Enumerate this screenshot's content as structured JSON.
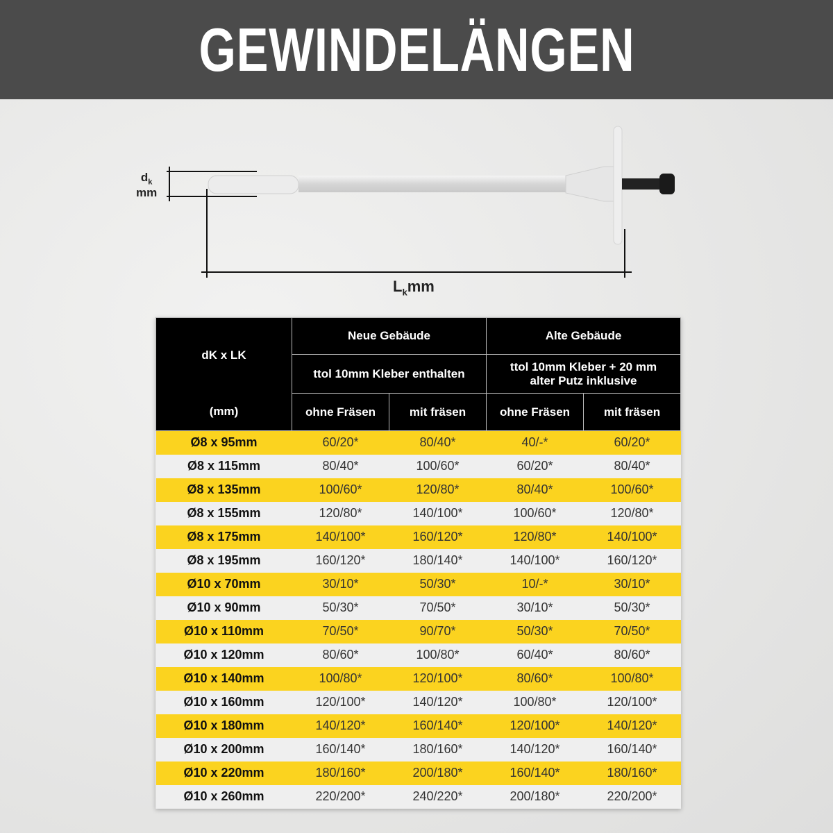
{
  "title": "GEWINDELÄNGEN",
  "diagram": {
    "dk_label": "d",
    "dk_sub": "k",
    "dk_unit": "mm",
    "lk_label": "L",
    "lk_sub": "k",
    "lk_unit": "mm"
  },
  "table": {
    "first_header_top": "dK x LK",
    "first_header_bottom": "(mm)",
    "group_new": "Neue Gebäude",
    "group_old": "Alte Gebäude",
    "sub_new": "ttol 10mm Kleber enthalten",
    "sub_old_line1": "ttol 10mm Kleber + 20 mm",
    "sub_old_line2": "alter Putz inklusive",
    "cols": [
      "ohne Fräsen",
      "mit fräsen",
      "ohne Fräsen",
      "mit fräsen"
    ],
    "rows": [
      [
        "Ø8 x 95mm",
        "60/20*",
        "80/40*",
        "40/-*",
        "60/20*"
      ],
      [
        "Ø8 x 115mm",
        "80/40*",
        "100/60*",
        "60/20*",
        "80/40*"
      ],
      [
        "Ø8 x 135mm",
        "100/60*",
        "120/80*",
        "80/40*",
        "100/60*"
      ],
      [
        "Ø8 x 155mm",
        "120/80*",
        "140/100*",
        "100/60*",
        "120/80*"
      ],
      [
        "Ø8 x 175mm",
        "140/100*",
        "160/120*",
        "120/80*",
        "140/100*"
      ],
      [
        "Ø8 x 195mm",
        "160/120*",
        "180/140*",
        "140/100*",
        "160/120*"
      ],
      [
        "Ø10 x 70mm",
        "30/10*",
        "50/30*",
        "10/-*",
        "30/10*"
      ],
      [
        "Ø10 x 90mm",
        "50/30*",
        "70/50*",
        "30/10*",
        "50/30*"
      ],
      [
        "Ø10 x 110mm",
        "70/50*",
        "90/70*",
        "50/30*",
        "70/50*"
      ],
      [
        "Ø10 x 120mm",
        "80/60*",
        "100/80*",
        "60/40*",
        "80/60*"
      ],
      [
        "Ø10 x 140mm",
        "100/80*",
        "120/100*",
        "80/60*",
        "100/80*"
      ],
      [
        "Ø10 x 160mm",
        "120/100*",
        "140/120*",
        "100/80*",
        "120/100*"
      ],
      [
        "Ø10 x 180mm",
        "140/120*",
        "160/140*",
        "120/100*",
        "140/120*"
      ],
      [
        "Ø10 x 200mm",
        "160/140*",
        "180/160*",
        "140/120*",
        "160/140*"
      ],
      [
        "Ø10 x 220mm",
        "180/160*",
        "200/180*",
        "160/140*",
        "180/160*"
      ],
      [
        "Ø10 x 260mm",
        "220/200*",
        "240/220*",
        "200/180*",
        "220/200*"
      ]
    ]
  },
  "colors": {
    "header_bg": "#4b4b4b",
    "yellow": "#fbd31f",
    "gray_row": "#efefef",
    "table_header": "#000000"
  }
}
